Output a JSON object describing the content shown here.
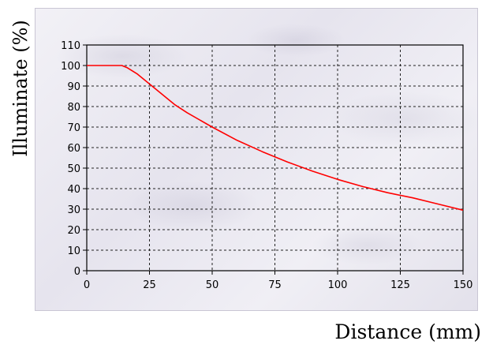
{
  "chart_data": {
    "type": "line",
    "title": "",
    "xlabel": "Distance (mm)",
    "ylabel": "Illuminate (%)",
    "xlim": [
      0,
      150
    ],
    "ylim": [
      0,
      110
    ],
    "x_ticks": [
      "0",
      "25",
      "50",
      "75",
      "100",
      "125",
      "150"
    ],
    "y_ticks": [
      "0",
      "10",
      "20",
      "30",
      "40",
      "50",
      "60",
      "70",
      "80",
      "90",
      "100",
      "110"
    ],
    "grid": true,
    "series": [
      {
        "color": "#ff0000",
        "x": [
          0,
          5,
          10,
          14,
          16,
          20,
          25,
          30,
          35,
          40,
          50,
          60,
          70,
          80,
          90,
          100,
          110,
          120,
          130,
          140,
          150
        ],
        "y": [
          100,
          100,
          100,
          100,
          99,
          96,
          91,
          86,
          81,
          77,
          70,
          63.5,
          58,
          53,
          48.5,
          44.5,
          41,
          38,
          35.5,
          32.5,
          29.5
        ]
      }
    ]
  }
}
